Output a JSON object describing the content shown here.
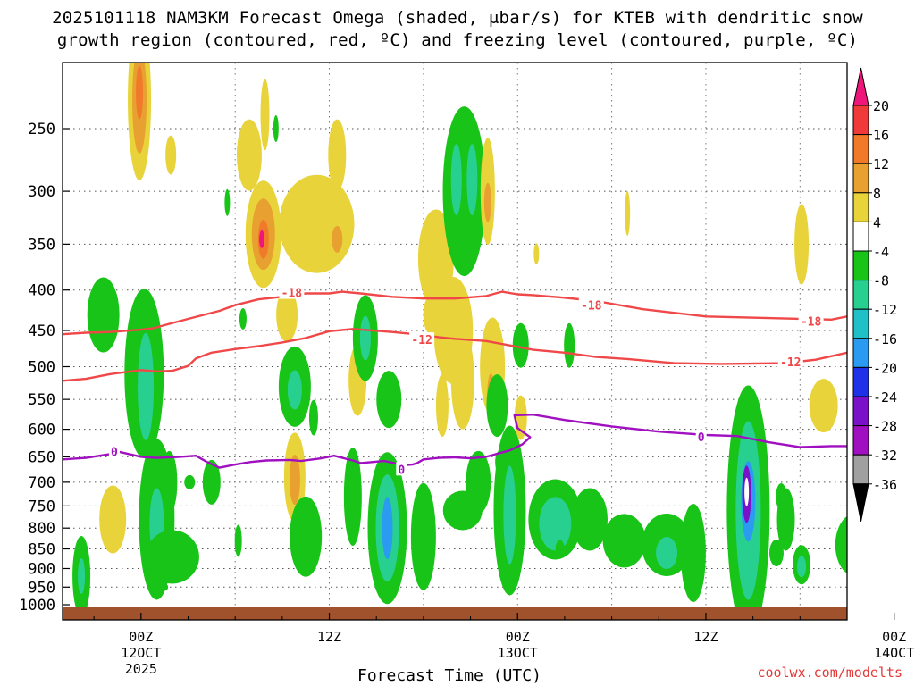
{
  "chart_data": {
    "type": "heatmap",
    "title_line1": "2025101118 NAM3KM Forecast Omega (shaded, μbar/s) for KTEB with dendritic snow",
    "title_line2": "growth region (contoured, red, ºC) and freezing level (contoured, purple, ºC)",
    "xlabel": "Forecast Time (UTC)",
    "credit": "coolwx.com/modelts",
    "yaxis": {
      "scale": "pressure (hPa), reversed",
      "ticks": [
        250,
        300,
        350,
        400,
        450,
        500,
        550,
        600,
        650,
        700,
        750,
        800,
        850,
        900,
        950,
        1000
      ]
    },
    "xaxis": {
      "range_hours": [
        -5,
        45
      ],
      "ticks": [
        {
          "hour": 0,
          "lines": [
            "00Z",
            "12OCT",
            "2025"
          ]
        },
        {
          "hour": 12,
          "lines": [
            "12Z"
          ]
        },
        {
          "hour": 24,
          "lines": [
            "00Z",
            "13OCT"
          ]
        },
        {
          "hour": 36,
          "lines": [
            "12Z"
          ]
        },
        {
          "hour": 48,
          "lines": [
            "00Z",
            "14OCT"
          ]
        }
      ]
    },
    "colorbar": {
      "labels": [
        "20",
        "16",
        "12",
        "8",
        "4",
        "-4",
        "-8",
        "-12",
        "-16",
        "-20",
        "-24",
        "-28",
        "-32",
        "-36"
      ],
      "colors": [
        "#f0157a",
        "#f03a3a",
        "#f07a2a",
        "#e8a030",
        "#e8d43a",
        "#ffffff",
        "#18c418",
        "#28d090",
        "#20c0c8",
        "#2a9bf0",
        "#1e30e8",
        "#7a10c8",
        "#a010c0",
        "#a0a0a0",
        "#000000"
      ]
    },
    "contours": {
      "dgz_color": "#f04848",
      "freezing_color": "#a010c0",
      "labels": [
        {
          "text": "-18",
          "color": "#f04848",
          "hour": 9.6,
          "hpa": 403
        },
        {
          "text": "-18",
          "color": "#f04848",
          "hour": 28.7,
          "hpa": 418
        },
        {
          "text": "-18",
          "color": "#f04848",
          "hour": 42.7,
          "hpa": 438
        },
        {
          "text": "-12",
          "color": "#f04848",
          "hour": 17.9,
          "hpa": 462
        },
        {
          "text": "-12",
          "color": "#f04848",
          "hour": 41.4,
          "hpa": 493
        },
        {
          "text": "0",
          "color": "#a010c0",
          "hour": -1.7,
          "hpa": 640
        },
        {
          "text": "0",
          "color": "#a010c0",
          "hour": 16.6,
          "hpa": 674
        },
        {
          "text": "0",
          "color": "#a010c0",
          "hour": 35.7,
          "hpa": 613
        }
      ],
      "dgz_top_18": [
        [
          -5,
          455
        ],
        [
          -3.5,
          453
        ],
        [
          -2,
          452
        ],
        [
          0,
          449
        ],
        [
          0.8,
          447
        ],
        [
          1.5,
          443
        ],
        [
          3,
          435
        ],
        [
          5,
          425
        ],
        [
          6,
          418
        ],
        [
          7.5,
          411
        ],
        [
          9,
          408
        ],
        [
          10.5,
          404
        ],
        [
          12,
          404
        ],
        [
          12.8,
          402
        ],
        [
          14,
          404
        ],
        [
          16,
          408
        ],
        [
          18,
          410
        ],
        [
          20,
          410
        ],
        [
          22,
          407
        ],
        [
          23,
          402
        ],
        [
          24,
          405
        ],
        [
          25,
          406
        ],
        [
          27,
          409
        ],
        [
          29,
          413
        ],
        [
          32,
          423
        ],
        [
          36,
          432
        ],
        [
          40,
          434
        ],
        [
          44,
          436
        ],
        [
          45,
          432
        ]
      ],
      "dgz_bottom_12": [
        [
          -5,
          521
        ],
        [
          -3.5,
          518
        ],
        [
          -2,
          511
        ],
        [
          0,
          505
        ],
        [
          1,
          507
        ],
        [
          2,
          506
        ],
        [
          3,
          499
        ],
        [
          3.5,
          488
        ],
        [
          4.5,
          480
        ],
        [
          6,
          475
        ],
        [
          7.5,
          471
        ],
        [
          9,
          466
        ],
        [
          10.5,
          460
        ],
        [
          12,
          451
        ],
        [
          13.5,
          448
        ],
        [
          16,
          452
        ],
        [
          18,
          456
        ],
        [
          19,
          459
        ],
        [
          20,
          461
        ],
        [
          22,
          464
        ],
        [
          23.5,
          470
        ],
        [
          25,
          476
        ],
        [
          27,
          480
        ],
        [
          29,
          486
        ],
        [
          31,
          489
        ],
        [
          34,
          495
        ],
        [
          37,
          496
        ],
        [
          41,
          495
        ],
        [
          43,
          490
        ],
        [
          45,
          480
        ]
      ],
      "freezing_0": [
        [
          -5,
          655
        ],
        [
          -3.5,
          652
        ],
        [
          -2,
          645
        ],
        [
          -1.5,
          640
        ],
        [
          0,
          650
        ],
        [
          1,
          652
        ],
        [
          2.5,
          650
        ],
        [
          3.5,
          648
        ],
        [
          4.2,
          660
        ],
        [
          5,
          671
        ],
        [
          6,
          665
        ],
        [
          7,
          660
        ],
        [
          8,
          657
        ],
        [
          9.5,
          656
        ],
        [
          10.2,
          658
        ],
        [
          11.5,
          653
        ],
        [
          12.3,
          648
        ],
        [
          13.5,
          657
        ],
        [
          14,
          662
        ],
        [
          15.5,
          658
        ],
        [
          16.3,
          663
        ],
        [
          16.8,
          666
        ],
        [
          17.3,
          665
        ],
        [
          17.6,
          662
        ],
        [
          18,
          655
        ],
        [
          19,
          652
        ],
        [
          20,
          651
        ],
        [
          21,
          653
        ],
        [
          22,
          650
        ],
        [
          23.5,
          638
        ],
        [
          24.3,
          627
        ],
        [
          24.8,
          614
        ],
        [
          24,
          598
        ],
        [
          23.8,
          576
        ],
        [
          25,
          575
        ],
        [
          27,
          584
        ],
        [
          30,
          595
        ],
        [
          33,
          604
        ],
        [
          36,
          610
        ],
        [
          38,
          612
        ],
        [
          40,
          623
        ],
        [
          42,
          632
        ],
        [
          44,
          630
        ],
        [
          45,
          630
        ]
      ]
    }
  }
}
